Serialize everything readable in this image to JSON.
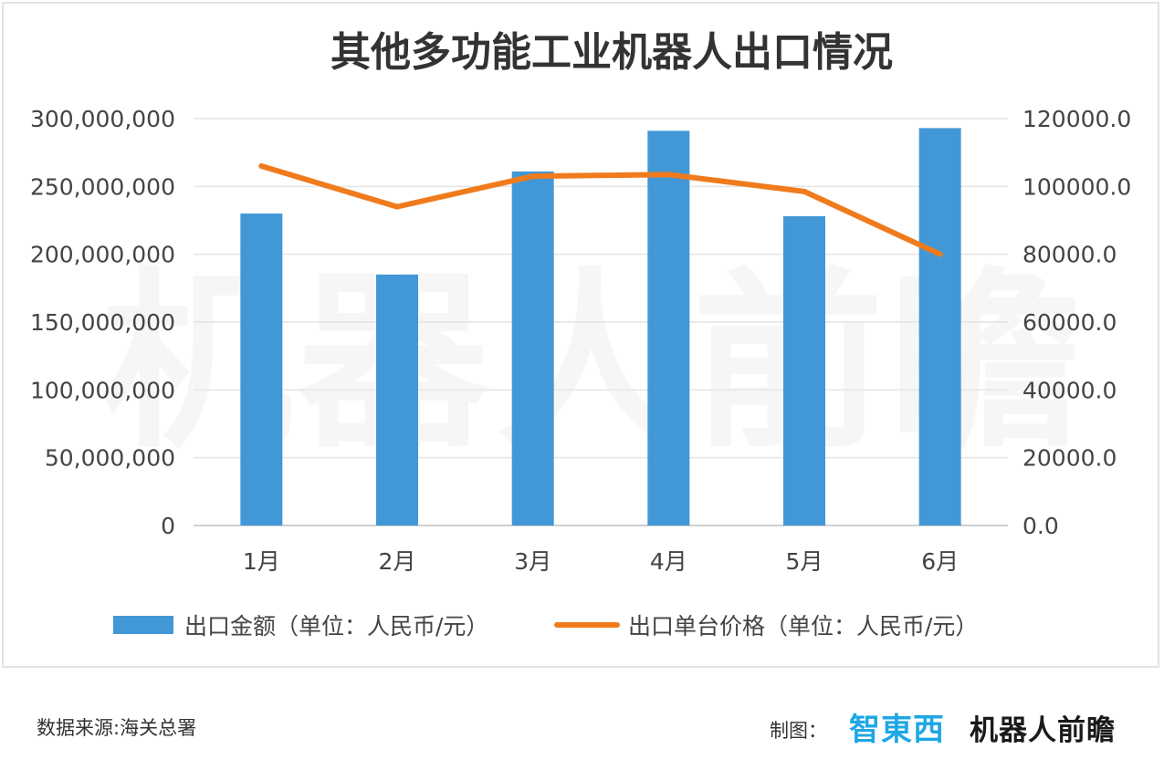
{
  "chart_data": {
    "type": "bar",
    "title": "其他多功能工业机器人出口情况",
    "categories": [
      "1月",
      "2月",
      "3月",
      "4月",
      "5月",
      "6月"
    ],
    "series": [
      {
        "name": "出口金额（单位：人民币/元）",
        "type": "bar",
        "axis": "left",
        "color": "#4297d7",
        "values": [
          230000000,
          185000000,
          261000000,
          291000000,
          228000000,
          293000000
        ]
      },
      {
        "name": "出口单台价格（单位：人民币/元）",
        "type": "line",
        "axis": "right",
        "color": "#f07b1d",
        "values": [
          106000,
          94000,
          103000,
          103500,
          98500,
          80000
        ]
      }
    ],
    "y_left": {
      "range": [
        0,
        300000000
      ],
      "ticks": [
        "0",
        "50,000,000",
        "100,000,000",
        "150,000,000",
        "200,000,000",
        "250,000,000",
        "300,000,000"
      ]
    },
    "y_right": {
      "range": [
        0,
        120000
      ],
      "ticks": [
        "0.0",
        "20000.0",
        "40000.0",
        "60000.0",
        "80000.0",
        "100000.0",
        "120000.0"
      ]
    },
    "grid": true,
    "legend_position": "bottom",
    "watermark": "机器人前瞻"
  },
  "footer": {
    "source": "数据来源:海关总署",
    "credit_label": "制图：",
    "logo_zhidx": "智東西",
    "logo_robot": "机器人前瞻"
  }
}
